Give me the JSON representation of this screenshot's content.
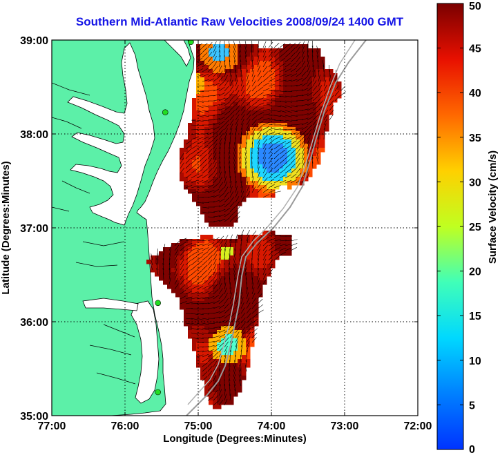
{
  "title": "Southern Mid-Atlantic Raw Velocities 2008/09/24 1400 GMT",
  "x_axis": {
    "label": "Longitude (Degrees:Minutes)",
    "ticks": [
      "77:00",
      "76:00",
      "75:00",
      "74:00",
      "73:00",
      "72:00"
    ]
  },
  "y_axis": {
    "label": "Latitude (Degrees:Minutes)",
    "ticks": [
      "39:00",
      "38:00",
      "37:00",
      "36:00",
      "35:00"
    ]
  },
  "colorbar": {
    "label": "Surface Velocity (cm/s)",
    "ticks": [
      "50",
      "45",
      "40",
      "35",
      "30",
      "25",
      "20",
      "15",
      "10",
      "5",
      "0"
    ]
  },
  "colors": {
    "land": "#5cf0a8",
    "coast": "#000000",
    "title": "#1414e6",
    "vector": "#000000",
    "station": "#22dd22"
  },
  "chart_data": {
    "type": "heatmap",
    "xlim": [
      -77,
      -72
    ],
    "ylim": [
      35,
      39
    ],
    "clim": [
      0,
      50
    ],
    "grid": true,
    "stations": [
      {
        "lon": -75.1,
        "lat": 38.98
      },
      {
        "lon": -75.45,
        "lat": 38.23
      },
      {
        "lon": -75.55,
        "lat": 36.2
      },
      {
        "lon": -75.55,
        "lat": 35.25
      }
    ]
  }
}
